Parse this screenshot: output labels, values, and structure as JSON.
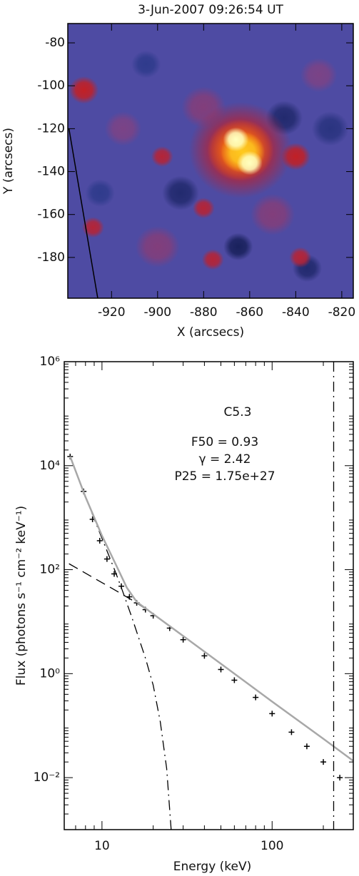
{
  "chart_data": [
    {
      "type": "image",
      "title": "3-Jun-2007 09:26:54 UT",
      "xlabel": "X (arcsecs)",
      "ylabel": "Y (arcsecs)",
      "xlim": [
        -939,
        -815
      ],
      "ylim": [
        -199,
        -71
      ],
      "xticks": [
        -920,
        -900,
        -880,
        -860,
        -840,
        -820
      ],
      "yticks": [
        -80,
        -100,
        -120,
        -140,
        -160,
        -180
      ],
      "colormap": [
        "#141a50",
        "#3b49a6",
        "#6a4e9e",
        "#a02a50",
        "#c81e1e",
        "#f06010",
        "#ffd020",
        "#ffffc0"
      ],
      "background_level": 0.2,
      "sources": [
        {
          "x": -890,
          "y": -150,
          "r": 5,
          "level": 0.05
        },
        {
          "x": -845,
          "y": -115,
          "r": 5,
          "level": 0.05
        },
        {
          "x": -865,
          "y": -175,
          "r": 4,
          "level": 0.02
        },
        {
          "x": -835,
          "y": -185,
          "r": 4,
          "level": 0.05
        },
        {
          "x": -905,
          "y": -90,
          "r": 4,
          "level": 0.1
        },
        {
          "x": -825,
          "y": -120,
          "r": 5,
          "level": 0.08
        },
        {
          "x": -925,
          "y": -150,
          "r": 4,
          "level": 0.1
        },
        {
          "x": -880,
          "y": -110,
          "r": 6,
          "level": 0.35
        },
        {
          "x": -850,
          "y": -160,
          "r": 6,
          "level": 0.35
        },
        {
          "x": -900,
          "y": -175,
          "r": 6,
          "level": 0.35
        },
        {
          "x": -830,
          "y": -95,
          "r": 5,
          "level": 0.33
        },
        {
          "x": -915,
          "y": -120,
          "r": 5,
          "level": 0.33
        },
        {
          "x": -932,
          "y": -102,
          "r": 4,
          "level": 0.55
        },
        {
          "x": -840,
          "y": -133,
          "r": 4,
          "level": 0.55
        },
        {
          "x": -898,
          "y": -133,
          "r": 3,
          "level": 0.5
        },
        {
          "x": -880,
          "y": -157,
          "r": 3,
          "level": 0.5
        },
        {
          "x": -876,
          "y": -181,
          "r": 3,
          "level": 0.5
        },
        {
          "x": -928,
          "y": -166,
          "r": 3,
          "level": 0.5
        },
        {
          "x": -838,
          "y": -180,
          "r": 3,
          "level": 0.5
        },
        {
          "x": -864,
          "y": -130,
          "r": 14,
          "level": 0.5
        },
        {
          "x": -864,
          "y": -130,
          "r": 9,
          "level": 0.72
        },
        {
          "x": -863,
          "y": -131,
          "r": 6,
          "level": 0.85
        },
        {
          "x": -866,
          "y": -125,
          "r": 3.5,
          "level": 1
        },
        {
          "x": -860,
          "y": -136,
          "r": 3.5,
          "level": 1
        }
      ],
      "limb": {
        "x": [
          -938.5,
          -926
        ],
        "y": [
          -120,
          -199
        ]
      }
    },
    {
      "type": "line",
      "xlabel": "Energy (keV)",
      "ylabel": "Flux (photons s⁻¹ cm⁻² keV⁻¹)",
      "xlog": true,
      "ylog": true,
      "xlim": [
        6,
        300
      ],
      "ylim": [
        0.001,
        1000000
      ],
      "xticks": [
        10,
        100
      ],
      "yticks": [
        {
          "value": 1000000,
          "label": "10⁶"
        },
        {
          "value": 10000,
          "label": "10⁴"
        },
        {
          "value": 100,
          "label": "10²"
        },
        {
          "value": 1,
          "label": "10⁰"
        },
        {
          "value": 0.01,
          "label": "10⁻²"
        }
      ],
      "annotations": [
        "C5.3",
        "F50 = 0.93",
        "γ = 2.42",
        "P25 = 1.75e+27"
      ],
      "vline_x": 230,
      "series": [
        {
          "style": "dashdot",
          "color": "#000000",
          "x": [
            6.5,
            8,
            10,
            12,
            13,
            15,
            18,
            20,
            22,
            24,
            25.5
          ],
          "values": [
            15000,
            2500,
            400,
            90,
            45,
            12,
            2,
            0.6,
            0.12,
            0.015,
            0.001
          ]
        },
        {
          "style": "dashed",
          "color": "#000000",
          "x": [
            6.4,
            12,
            16,
            20,
            30,
            60,
            100,
            200,
            300
          ],
          "values": [
            130,
            40,
            23,
            13.9,
            5.3,
            1,
            0.29,
            0.056,
            0.021
          ]
        },
        {
          "style": "cross",
          "color": "#000000",
          "x": [
            6.5,
            7.8,
            8.8,
            9.7,
            10.7,
            11.8,
            13,
            14.5,
            16,
            18,
            20,
            25,
            30,
            40,
            50,
            60,
            80,
            100,
            130,
            160,
            200,
            250
          ],
          "values": [
            15000,
            3200,
            930,
            360,
            160,
            83,
            48,
            30,
            23,
            17,
            13,
            7.5,
            4.5,
            2.2,
            1.2,
            0.75,
            0.35,
            0.17,
            0.075,
            0.04,
            0.02,
            0.01
          ]
        },
        {
          "style": "solid",
          "color": "#a8a8a8",
          "x": [
            6.5,
            8,
            10,
            12,
            14,
            16,
            20,
            30,
            60,
            100,
            200,
            300
          ],
          "values": [
            15000,
            2500,
            450,
            130,
            45,
            24,
            14,
            5.3,
            1,
            0.29,
            0.056,
            0.021
          ]
        }
      ]
    }
  ]
}
